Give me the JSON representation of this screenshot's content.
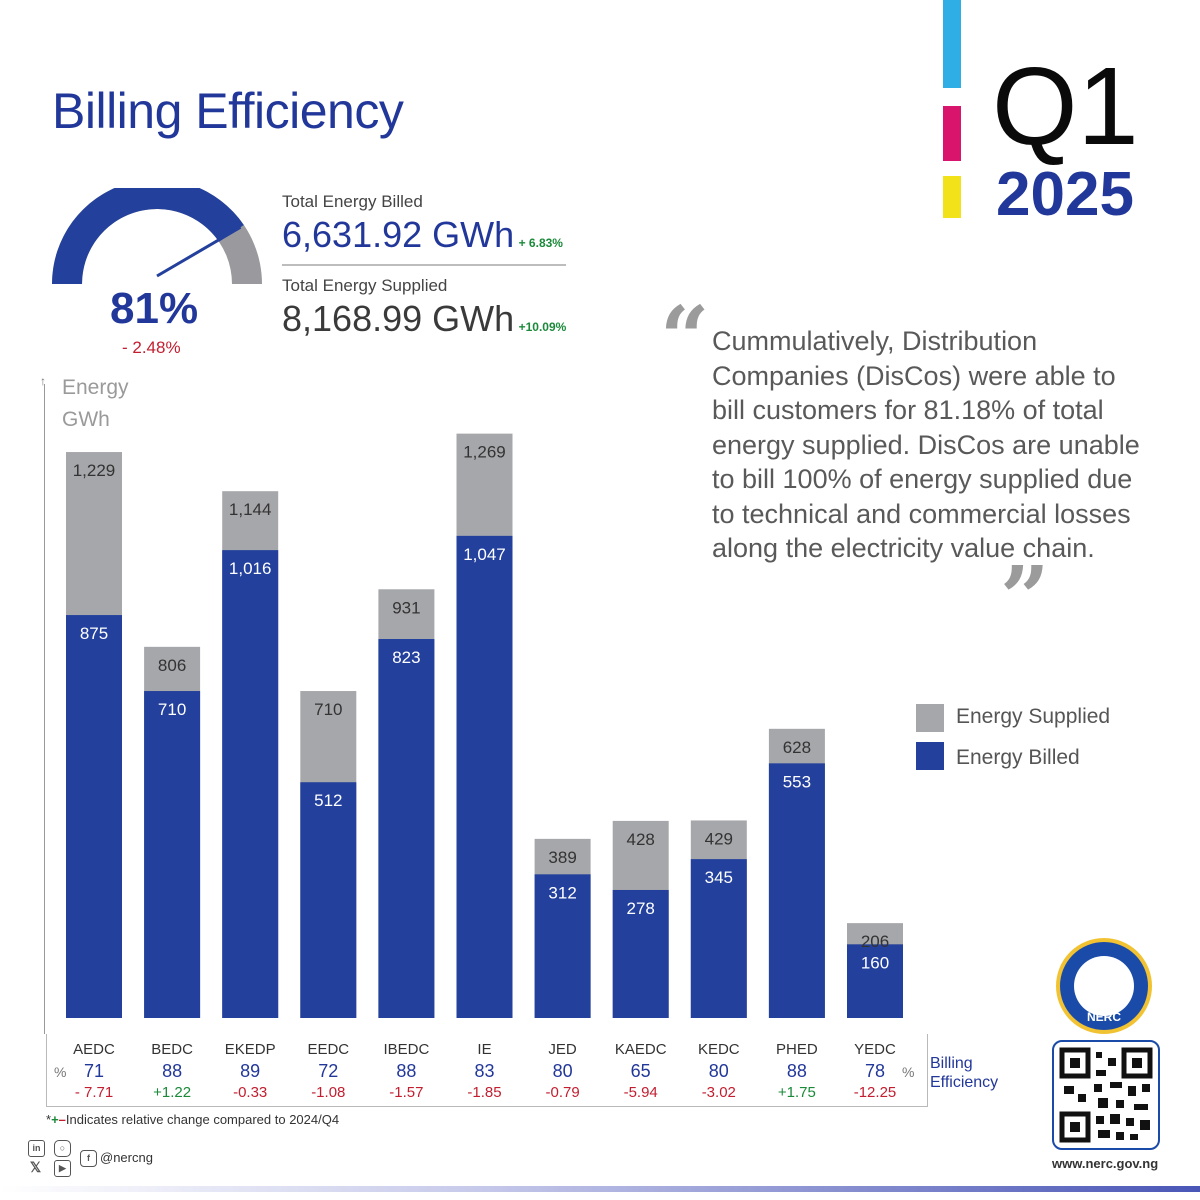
{
  "header": {
    "title": "Billing Efficiency",
    "quarter": "Q1",
    "year": "2025"
  },
  "gauge": {
    "value_label": "81%",
    "change_label": "- 2.48%",
    "fraction": 0.81
  },
  "stats": {
    "billed_label": "Total Energy Billed",
    "billed_value": "6,631.92 GWh",
    "billed_change": "+ 6.83%",
    "supplied_label": "Total Energy Supplied",
    "supplied_value": "8,168.99 GWh",
    "supplied_change": "+10.09%"
  },
  "quote": {
    "text": "Cummulatively, Distribution Companies (DisCos) were able to bill customers for 81.18% of total energy supplied. DisCos are unable to bill 100% of energy supplied due to technical and commercial losses along the electricity value chain."
  },
  "colors": {
    "billed": "#22409c",
    "supplied": "#a6a7ab",
    "accent": "#22379a",
    "positive": "#1a8a3a",
    "negative": "#c21e2f"
  },
  "chart_data": {
    "type": "bar",
    "title": "Billing Efficiency",
    "ylabel_line1": "Energy",
    "ylabel_line2": "GWh",
    "ylim": [
      0,
      1300
    ],
    "categories": [
      "AEDC",
      "BEDC",
      "EKEDP",
      "EEDC",
      "IBEDC",
      "IE",
      "JED",
      "KAEDC",
      "KEDC",
      "PHED",
      "YEDC"
    ],
    "series": [
      {
        "name": "Energy Supplied",
        "values": [
          1229,
          806,
          1144,
          710,
          931,
          1269,
          389,
          428,
          429,
          628,
          206
        ],
        "labels": [
          "1,229",
          "806",
          "1,144",
          "710",
          "931",
          "1,269",
          "389",
          "428",
          "429",
          "628",
          "206"
        ]
      },
      {
        "name": "Energy Billed",
        "values": [
          875,
          710,
          1016,
          512,
          823,
          1047,
          312,
          278,
          345,
          553,
          160
        ],
        "labels": [
          "875",
          "710",
          "1,016",
          "512",
          "823",
          "1,047",
          "312",
          "278",
          "345",
          "553",
          "160"
        ]
      }
    ],
    "legend": [
      "Energy Supplied",
      "Energy Billed"
    ],
    "efficiency": {
      "label_line1": "Billing",
      "label_line2": "Efficiency",
      "unit": "%",
      "values": [
        "71",
        "88",
        "89",
        "72",
        "88",
        "83",
        "80",
        "65",
        "80",
        "88",
        "78"
      ],
      "changes": [
        "- 7.71",
        "+1.22",
        "-0.33",
        "-1.08",
        "-1.57",
        "-1.85",
        "-0.79",
        "-5.94",
        "-3.02",
        "+1.75",
        "-12.25"
      ]
    }
  },
  "footer": {
    "footnote_star": "*",
    "footnote_plus": "+",
    "footnote_minus": "–",
    "footnote_text": "Indicates relative change compared to 2024/Q4",
    "handle": "@nercng",
    "website": "www.nerc.gov.ng",
    "seal_text": "NERC",
    "social_icons": [
      "linkedin-icon",
      "instagram-icon",
      "x-icon",
      "youtube-icon",
      "facebook-icon"
    ]
  }
}
